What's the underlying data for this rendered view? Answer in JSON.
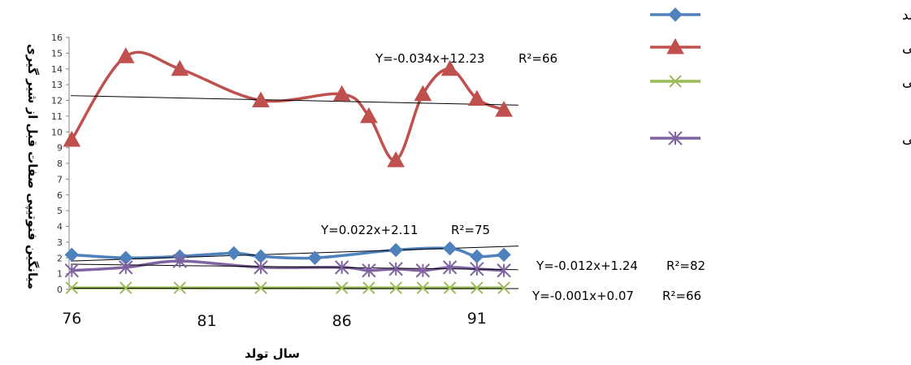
{
  "chart_data": {
    "type": "line",
    "xlabel": "سال تولد",
    "ylabel": "میانگین فنوتیپی صفات قبل از شیر گیری",
    "xlim": [
      75.9,
      92.6
    ],
    "ylim": [
      0,
      16
    ],
    "yticks": [
      0,
      1,
      2,
      3,
      4,
      5,
      6,
      7,
      8,
      9,
      10,
      11,
      12,
      13,
      14,
      15,
      16
    ],
    "xticks": [
      76,
      81,
      86,
      91
    ],
    "grid": false,
    "legend": "right",
    "series": [
      {
        "name": "وزن تولد",
        "color": "#4f81bd",
        "marker": "diamond",
        "x": [
          76,
          78,
          80,
          82,
          83,
          85,
          88,
          90,
          91,
          92
        ],
        "y": [
          2.2,
          2.0,
          2.1,
          2.3,
          2.1,
          2.0,
          2.5,
          2.6,
          2.1,
          2.2
        ],
        "trend": {
          "equation": "Y=0.022x+2.11",
          "r2": "R²=75",
          "y_start": 1.8,
          "y_end": 2.75
        }
      },
      {
        "name": "وزن سه ماهگی",
        "color": "#c0504d",
        "marker": "triangle",
        "x": [
          76,
          78,
          80,
          83,
          86,
          87,
          88,
          89,
          90,
          91,
          92
        ],
        "y": [
          9.5,
          14.8,
          14.0,
          12.0,
          12.4,
          11.0,
          8.2,
          12.4,
          14.0,
          12.1,
          11.4
        ],
        "trend": {
          "equation": "Y=-0.034x+12.23",
          "r2": "R²=66",
          "y_start": 12.3,
          "y_end": 11.7
        }
      },
      {
        "name": "میزان افزایش وزن از تولد تا سه ماهگی",
        "color": "#9bbb59",
        "marker": "x",
        "x": [
          76,
          78,
          80,
          83,
          86,
          87,
          88,
          89,
          90,
          91,
          92
        ],
        "y": [
          0.1,
          0.1,
          0.1,
          0.1,
          0.1,
          0.1,
          0.1,
          0.1,
          0.1,
          0.1,
          0.1
        ],
        "trend": {
          "equation": "Y=-0.001x+0.07",
          "r2": "R²=66",
          "y_start": 0.07,
          "y_end": 0.05
        }
      },
      {
        "name": "نسبت کلیبر از تولد تا سه ماهگی",
        "color": "#8064a2",
        "marker": "star",
        "x": [
          76,
          78,
          80,
          83,
          86,
          87,
          88,
          89,
          90,
          91,
          92
        ],
        "y": [
          1.2,
          1.4,
          1.8,
          1.4,
          1.4,
          1.2,
          1.3,
          1.2,
          1.4,
          1.3,
          1.2
        ],
        "trend": {
          "equation": "Y=-0.012x+1.24",
          "r2": "R²=82",
          "y_start": 1.6,
          "y_end": 1.25
        }
      }
    ]
  }
}
